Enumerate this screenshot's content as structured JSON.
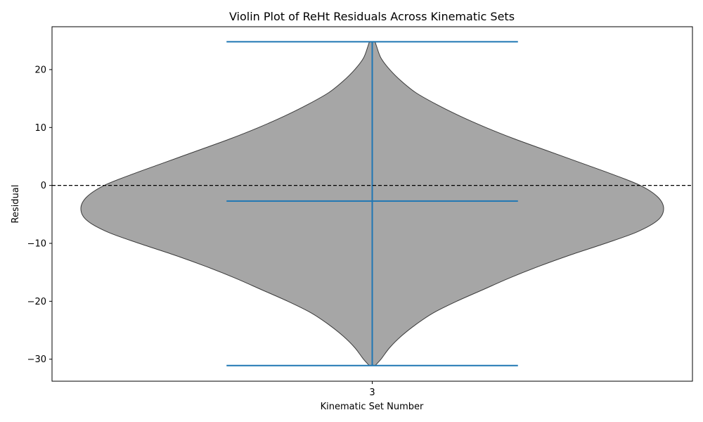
{
  "chart_data": {
    "type": "violin",
    "title": "Violin Plot of ReHt Residuals Across Kinematic Sets",
    "xlabel": "Kinematic Set Number",
    "ylabel": "Residual",
    "categories": [
      "3"
    ],
    "yticks": [
      20,
      10,
      0,
      -10,
      -20,
      -30
    ],
    "ytick_labels": [
      "20",
      "10",
      "0",
      "−10",
      "−20",
      "−30"
    ],
    "ylim": [
      -33.8,
      27.4
    ],
    "grid": false,
    "reference_line": {
      "y": 0,
      "style": "dashed",
      "color": "#000000"
    },
    "violins": [
      {
        "category": "3",
        "min": -31.1,
        "max": 24.8,
        "median": -2.7,
        "density_profile": [
          [
            -31.1,
            0.01
          ],
          [
            -30.0,
            0.03
          ],
          [
            -28.0,
            0.06
          ],
          [
            -26.0,
            0.1
          ],
          [
            -24.0,
            0.15
          ],
          [
            -22.0,
            0.21
          ],
          [
            -20.0,
            0.29
          ],
          [
            -18.0,
            0.38
          ],
          [
            -16.0,
            0.47
          ],
          [
            -14.0,
            0.57
          ],
          [
            -12.0,
            0.68
          ],
          [
            -10.0,
            0.8
          ],
          [
            -8.0,
            0.91
          ],
          [
            -6.0,
            0.98
          ],
          [
            -4.0,
            1.0
          ],
          [
            -2.0,
            0.98
          ],
          [
            0.0,
            0.92
          ],
          [
            2.0,
            0.82
          ],
          [
            4.0,
            0.71
          ],
          [
            6.0,
            0.6
          ],
          [
            8.0,
            0.49
          ],
          [
            10.0,
            0.39
          ],
          [
            12.0,
            0.3
          ],
          [
            14.0,
            0.22
          ],
          [
            16.0,
            0.15
          ],
          [
            18.0,
            0.1
          ],
          [
            20.0,
            0.06
          ],
          [
            22.0,
            0.03
          ],
          [
            24.0,
            0.015
          ],
          [
            24.8,
            0.01
          ]
        ]
      }
    ],
    "colors": {
      "body": "#a6a6a6",
      "edge": "#3a3a3a",
      "stats": "#1f77b4"
    }
  }
}
